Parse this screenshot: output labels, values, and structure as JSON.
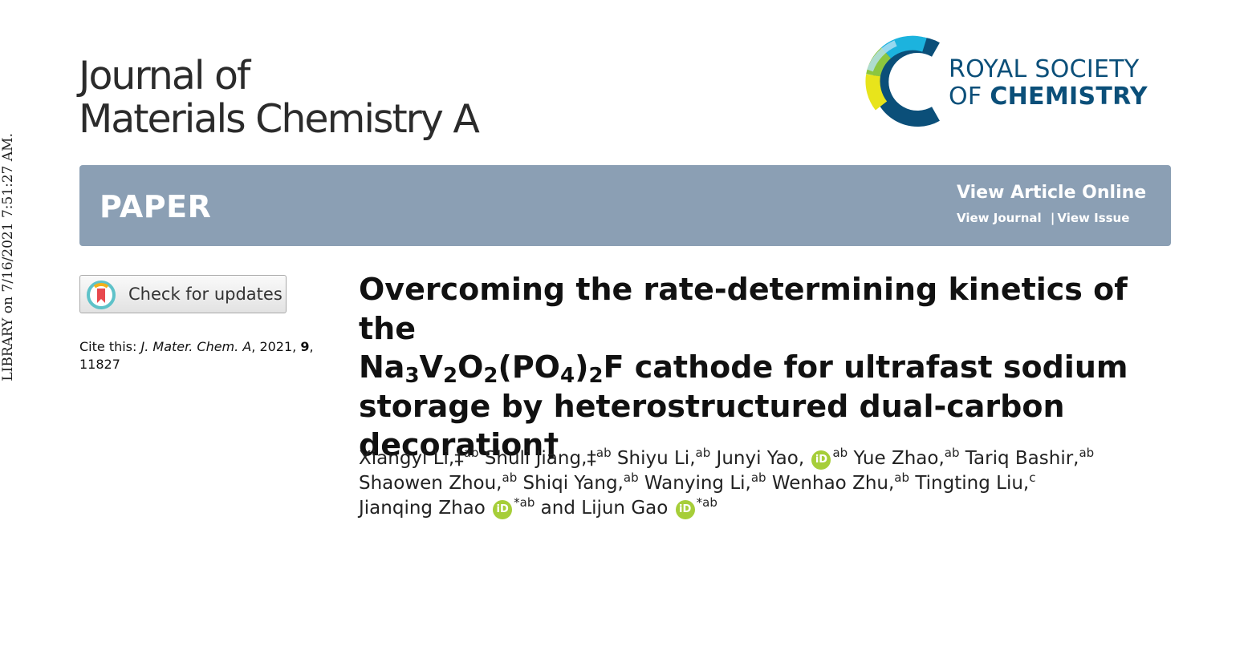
{
  "side_text": "LIBRARY on 7/16/2021 7:51:27 AM.",
  "journal": {
    "line1": "Journal of",
    "line2": "Materials Chemistry A"
  },
  "publisher": {
    "line1": "ROYAL SOCIETY",
    "line2_prefix": "OF ",
    "line2_bold": "CHEMISTRY"
  },
  "banner": {
    "type_label": "PAPER",
    "view_online": "View Article Online",
    "view_journal": "View Journal",
    "separator": "|",
    "view_issue": "View Issue"
  },
  "check_updates": {
    "label": "Check for updates"
  },
  "cite": {
    "prefix": "Cite this: ",
    "journal": "J. Mater. Chem. A",
    "year": ", 2021, ",
    "volume": "9",
    "pages": ", 11827"
  },
  "title": {
    "line1": "Overcoming the rate-determining kinetics of the",
    "formula": [
      "Na",
      "3",
      "V",
      "2",
      "O",
      "2",
      "(PO",
      "4",
      ")",
      "2",
      "F"
    ],
    "line2_rest": " cathode for ultrafast sodium",
    "line3": "storage by heterostructured dual-carbon",
    "line4": "decoration†"
  },
  "authors": [
    {
      "name": "Xiangyi Li,‡",
      "sup": "ab",
      "orcid": false
    },
    {
      "name": "Shuli Jiang,‡",
      "sup": "ab",
      "orcid": false
    },
    {
      "name": "Shiyu Li,",
      "sup": "ab",
      "orcid": false
    },
    {
      "name": "Junyi Yao,",
      "sup": "ab",
      "orcid": true
    },
    {
      "name": "Yue Zhao,",
      "sup": "ab",
      "orcid": false
    },
    {
      "name": "Tariq Bashir,",
      "sup": "ab",
      "orcid": false
    },
    {
      "name": "Shaowen Zhou,",
      "sup": "ab",
      "orcid": false
    },
    {
      "name": "Shiqi Yang,",
      "sup": "ab",
      "orcid": false
    },
    {
      "name": "Wanying Li,",
      "sup": "ab",
      "orcid": false
    },
    {
      "name": "Wenhao Zhu,",
      "sup": "ab",
      "orcid": false
    },
    {
      "name": "Tingting Liu,",
      "sup": "c",
      "orcid": false
    },
    {
      "name": "Jianqing Zhao",
      "sup": "*ab",
      "orcid": true
    },
    {
      "name": "and Lijun Gao",
      "sup": "*ab",
      "orcid": true
    }
  ],
  "orcid_label": "iD",
  "colors": {
    "banner": "#8b9fb4",
    "rsc_navy": "#0b4f79",
    "orcid_green": "#a6ce39"
  }
}
